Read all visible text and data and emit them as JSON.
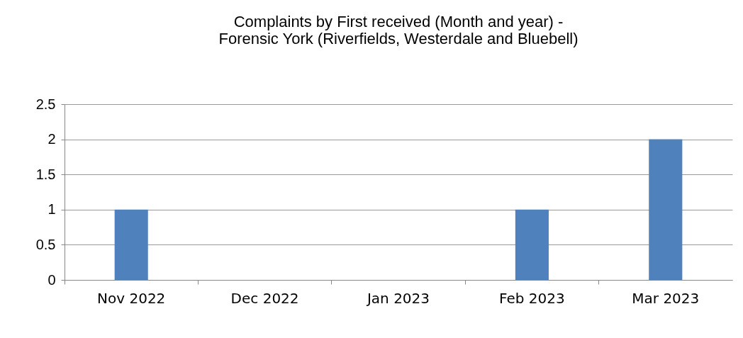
{
  "chart_data": {
    "type": "bar",
    "title": "Complaints by First received (Month and year) -\nForensic York (Riverfields, Westerdale and Bluebell)",
    "categories": [
      "Nov 2022",
      "Dec 2022",
      "Jan 2023",
      "Feb 2023",
      "Mar 2023"
    ],
    "values": [
      1,
      0,
      0,
      1,
      2
    ],
    "color": "#4f81bd",
    "ylim": [
      0,
      2.5
    ],
    "yticks": [
      0,
      0.5,
      1,
      1.5,
      2,
      2.5
    ],
    "grid": "y"
  }
}
